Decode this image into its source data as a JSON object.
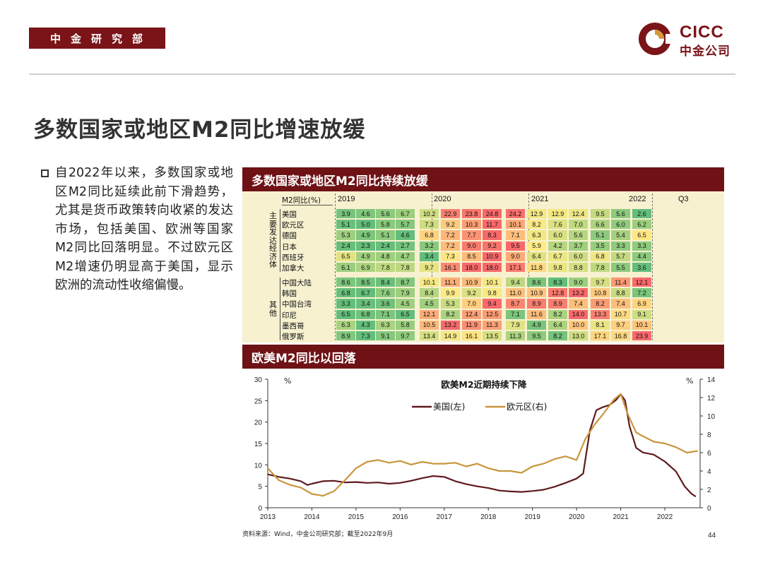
{
  "header": {
    "dept": "中金研究部",
    "logo_en": "CICC",
    "logo_cn": "中金公司"
  },
  "title": "多数国家或地区M2同比增速放缓",
  "bullet": "自2022年以来，多数国家或地区M2同比延续此前下滑趋势，尤其是货币政策转向收紧的发达市场，包括美国、欧洲等国家M2同比回落明显。不过欧元区M2增速仍明显高于美国，显示欧洲的流动性收缩偏慢。",
  "panel1_title": "多数国家或地区M2同比持续放缓",
  "panel2_title": "欧美M2同比以回落",
  "source": "资料来源：Wind，中金公司研究部；截至2022年9月",
  "page_number": "44",
  "colors": {
    "brand": "#7a1418",
    "us_line": "#5e1a1e",
    "euro_line": "#c8963c"
  },
  "chart_data": [
    {
      "type": "heatmap",
      "header_label": "M2同比(%)",
      "period_labels": [
        "2019",
        "2020",
        "2021",
        "2022",
        "Q3"
      ],
      "groups": [
        {
          "name": "主要发达经济体",
          "rows": [
            {
              "name": "美国",
              "values": [
                3.9,
                4.6,
                5.6,
                6.7,
                10.2,
                22.9,
                23.8,
                24.8,
                24.2,
                12.9,
                12.9,
                12.4,
                9.5,
                5.6,
                2.6
              ]
            },
            {
              "name": "欧元区",
              "values": [
                5.1,
                5.0,
                5.8,
                5.7,
                7.3,
                9.2,
                10.3,
                11.7,
                10.1,
                8.2,
                7.6,
                7.0,
                6.6,
                6.0,
                6.2
              ]
            },
            {
              "name": "德国",
              "values": [
                5.3,
                4.9,
                5.1,
                4.6,
                6.8,
                7.2,
                7.7,
                8.3,
                7.1,
                6.3,
                6.0,
                5.6,
                5.1,
                5.4,
                6.5
              ]
            },
            {
              "name": "日本",
              "values": [
                2.4,
                2.3,
                2.4,
                2.7,
                3.2,
                7.2,
                9.0,
                9.2,
                9.5,
                5.9,
                4.2,
                3.7,
                3.5,
                3.3,
                3.3
              ]
            },
            {
              "name": "西班牙",
              "values": [
                6.5,
                4.9,
                4.8,
                4.7,
                3.4,
                7.3,
                8.5,
                10.9,
                9.0,
                6.4,
                6.7,
                6.0,
                6.8,
                5.7,
                4.4
              ]
            },
            {
              "name": "加拿大",
              "values": [
                6.1,
                6.9,
                7.8,
                7.8,
                9.7,
                16.1,
                18.0,
                18.0,
                17.1,
                11.8,
                9.8,
                8.8,
                7.8,
                5.5,
                3.6
              ]
            }
          ]
        },
        {
          "name": "其他",
          "rows": [
            {
              "name": "中国大陆",
              "values": [
                8.6,
                8.5,
                8.4,
                8.7,
                10.1,
                11.1,
                10.9,
                10.1,
                9.4,
                8.6,
                8.3,
                9.0,
                9.7,
                11.4,
                12.1
              ]
            },
            {
              "name": "韩国",
              "values": [
                6.8,
                6.7,
                7.6,
                7.9,
                8.4,
                9.9,
                9.2,
                9.8,
                11.0,
                10.9,
                12.8,
                13.2,
                10.8,
                8.8,
                7.2
              ]
            },
            {
              "name": "中国台湾",
              "values": [
                3.3,
                3.4,
                3.6,
                4.5,
                4.5,
                5.3,
                7.0,
                9.4,
                8.7,
                8.9,
                8.9,
                7.4,
                8.2,
                7.4,
                6.9
              ]
            },
            {
              "name": "印尼",
              "values": [
                6.5,
                6.8,
                7.1,
                6.5,
                12.1,
                8.2,
                12.4,
                12.5,
                7.1,
                11.6,
                8.2,
                14.0,
                13.3,
                10.7,
                9.1
              ]
            },
            {
              "name": "墨西哥",
              "values": [
                6.3,
                4.3,
                6.3,
                5.8,
                10.5,
                13.2,
                11.9,
                11.3,
                7.9,
                4.9,
                6.4,
                10.0,
                8.1,
                9.7,
                10.1
              ]
            },
            {
              "name": "俄罗斯",
              "values": [
                8.9,
                7.3,
                9.1,
                9.7,
                13.4,
                14.9,
                16.1,
                13.5,
                11.3,
                9.5,
                8.2,
                13.0,
                17.1,
                16.8,
                23.9
              ]
            }
          ]
        }
      ]
    },
    {
      "type": "line",
      "title": "欧美M2近期持续下降",
      "y_left_unit": "%",
      "y_right_unit": "%",
      "ylim_left": [
        0,
        30
      ],
      "ylim_right": [
        0,
        14
      ],
      "y_left_ticks": [
        0,
        5,
        10,
        15,
        20,
        25,
        30
      ],
      "y_right_ticks": [
        0,
        2,
        4,
        6,
        8,
        10,
        12,
        14
      ],
      "xlim": [
        2013,
        2022.75
      ],
      "x_ticks": [
        "2013",
        "2014",
        "2015",
        "2016",
        "2017",
        "2018",
        "2019",
        "2020",
        "2021",
        "2022"
      ],
      "series": [
        {
          "name": "美国(左)",
          "axis": "left",
          "points": [
            [
              2013.0,
              7.8
            ],
            [
              2013.25,
              7.2
            ],
            [
              2013.5,
              6.8
            ],
            [
              2013.75,
              6.2
            ],
            [
              2013.9,
              5.3
            ],
            [
              2014.0,
              5.6
            ],
            [
              2014.25,
              6.2
            ],
            [
              2014.5,
              6.3
            ],
            [
              2014.75,
              5.9
            ],
            [
              2015.0,
              6.0
            ],
            [
              2015.25,
              5.8
            ],
            [
              2015.5,
              5.9
            ],
            [
              2015.75,
              5.6
            ],
            [
              2016.0,
              5.8
            ],
            [
              2016.25,
              6.3
            ],
            [
              2016.5,
              6.9
            ],
            [
              2016.75,
              7.4
            ],
            [
              2017.0,
              7.2
            ],
            [
              2017.25,
              6.2
            ],
            [
              2017.5,
              5.5
            ],
            [
              2017.75,
              5.0
            ],
            [
              2018.0,
              4.6
            ],
            [
              2018.25,
              4.0
            ],
            [
              2018.5,
              3.8
            ],
            [
              2018.75,
              3.7
            ],
            [
              2019.0,
              3.9
            ],
            [
              2019.25,
              4.2
            ],
            [
              2019.5,
              4.9
            ],
            [
              2019.75,
              5.8
            ],
            [
              2020.0,
              6.8
            ],
            [
              2020.15,
              8.0
            ],
            [
              2020.3,
              18.0
            ],
            [
              2020.45,
              22.8
            ],
            [
              2020.6,
              23.5
            ],
            [
              2020.75,
              24.0
            ],
            [
              2020.9,
              25.2
            ],
            [
              2021.0,
              26.5
            ],
            [
              2021.1,
              25.0
            ],
            [
              2021.2,
              19.0
            ],
            [
              2021.35,
              14.0
            ],
            [
              2021.5,
              12.9
            ],
            [
              2021.75,
              12.4
            ],
            [
              2022.0,
              10.8
            ],
            [
              2022.25,
              8.5
            ],
            [
              2022.45,
              5.0
            ],
            [
              2022.6,
              3.3
            ],
            [
              2022.7,
              2.6
            ]
          ]
        },
        {
          "name": "欧元区(右)",
          "axis": "right",
          "points": [
            [
              2013.0,
              4.3
            ],
            [
              2013.25,
              3.0
            ],
            [
              2013.5,
              2.5
            ],
            [
              2013.75,
              2.2
            ],
            [
              2014.0,
              1.5
            ],
            [
              2014.25,
              1.3
            ],
            [
              2014.5,
              1.8
            ],
            [
              2014.75,
              3.0
            ],
            [
              2015.0,
              4.3
            ],
            [
              2015.25,
              5.0
            ],
            [
              2015.5,
              5.2
            ],
            [
              2015.75,
              4.9
            ],
            [
              2016.0,
              5.1
            ],
            [
              2016.25,
              4.7
            ],
            [
              2016.5,
              5.0
            ],
            [
              2016.75,
              4.8
            ],
            [
              2017.0,
              4.8
            ],
            [
              2017.25,
              4.9
            ],
            [
              2017.5,
              4.5
            ],
            [
              2017.75,
              4.8
            ],
            [
              2018.0,
              4.3
            ],
            [
              2018.25,
              4.0
            ],
            [
              2018.5,
              4.0
            ],
            [
              2018.75,
              3.8
            ],
            [
              2019.0,
              4.5
            ],
            [
              2019.25,
              4.8
            ],
            [
              2019.5,
              5.3
            ],
            [
              2019.75,
              5.6
            ],
            [
              2020.0,
              5.2
            ],
            [
              2020.2,
              7.5
            ],
            [
              2020.4,
              9.0
            ],
            [
              2020.6,
              10.2
            ],
            [
              2020.85,
              11.8
            ],
            [
              2021.0,
              12.4
            ],
            [
              2021.15,
              10.3
            ],
            [
              2021.35,
              8.2
            ],
            [
              2021.5,
              7.8
            ],
            [
              2021.75,
              7.2
            ],
            [
              2022.0,
              7.0
            ],
            [
              2022.25,
              6.6
            ],
            [
              2022.5,
              6.0
            ],
            [
              2022.75,
              6.2
            ]
          ]
        }
      ]
    }
  ]
}
